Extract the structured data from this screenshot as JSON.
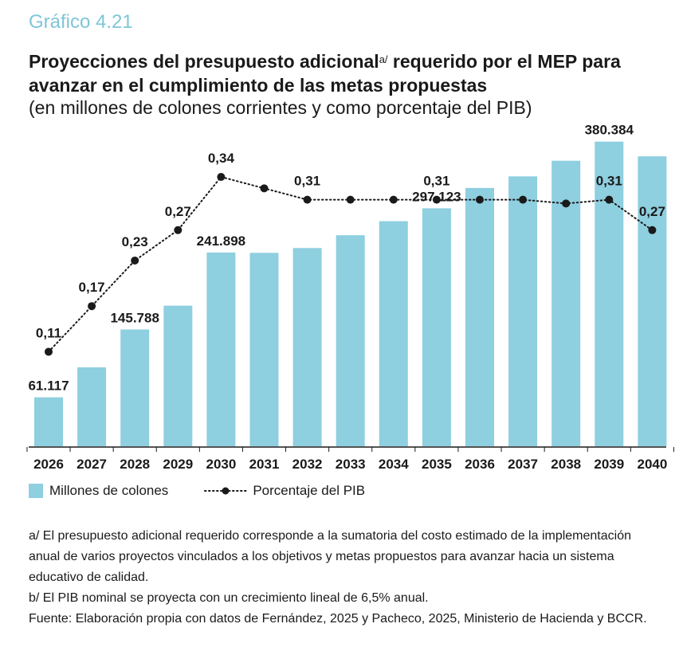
{
  "header": {
    "kicker": "Gráfico 4.21",
    "title_main": "Proyecciones del presupuesto adicional",
    "title_sup": "a/",
    "title_rest": " requerido por el MEP para avanzar en el cumplimiento de las metas propuestas",
    "subtitle": "(en millones de colones corrientes y como porcentaje del PIB)"
  },
  "colors": {
    "bar": "#8ecfe0",
    "line": "#1a1a1a",
    "kicker": "#7fc6d8"
  },
  "chart_data": {
    "type": "bar",
    "categories": [
      "2026",
      "2027",
      "2028",
      "2029",
      "2030",
      "2031",
      "2032",
      "2033",
      "2034",
      "2035",
      "2036",
      "2037",
      "2038",
      "2039",
      "2040"
    ],
    "series": [
      {
        "name": "Millones de colones",
        "type": "bar",
        "values": [
          61117,
          98500,
          145788,
          175500,
          241898,
          241500,
          247500,
          263500,
          281000,
          297123,
          322500,
          337000,
          356500,
          380384,
          362000
        ],
        "labels": [
          "61.117",
          "",
          "145.788",
          "",
          "241.898",
          "",
          "",
          "",
          "",
          "297.123",
          "",
          "",
          "",
          "380.384",
          ""
        ]
      },
      {
        "name": "Porcentaje del PIB",
        "type": "line",
        "style": "dotted",
        "values": [
          0.11,
          0.17,
          0.23,
          0.27,
          0.34,
          0.325,
          0.31,
          0.31,
          0.31,
          0.31,
          0.31,
          0.31,
          0.305,
          0.31,
          0.27
        ],
        "labels": [
          "0,11",
          "0,17",
          "0,23",
          "0,27",
          "0,34",
          "",
          "0,31",
          "",
          "",
          "0,31",
          "",
          "",
          "",
          "0,31",
          "0,27"
        ]
      }
    ],
    "ylim_bar": [
      0,
      400000
    ],
    "ylim_line": [
      0.1,
      0.34
    ]
  },
  "legend": {
    "bar_label": "Millones de colones",
    "line_label": "Porcentaje del PIB"
  },
  "notes": {
    "a": "a/ El presupuesto adicional requerido corresponde a la sumatoria del costo estimado de la implementación anual de varios proyectos vinculados a los objetivos y metas propuestos para avanzar hacia un sistema educativo de calidad.",
    "b": "b/ El PIB nominal se proyecta con un crecimiento lineal de 6,5% anual.",
    "source": "Fuente: Elaboración propia con datos de Fernández, 2025 y Pacheco, 2025, Ministerio de Hacienda y BCCR."
  }
}
